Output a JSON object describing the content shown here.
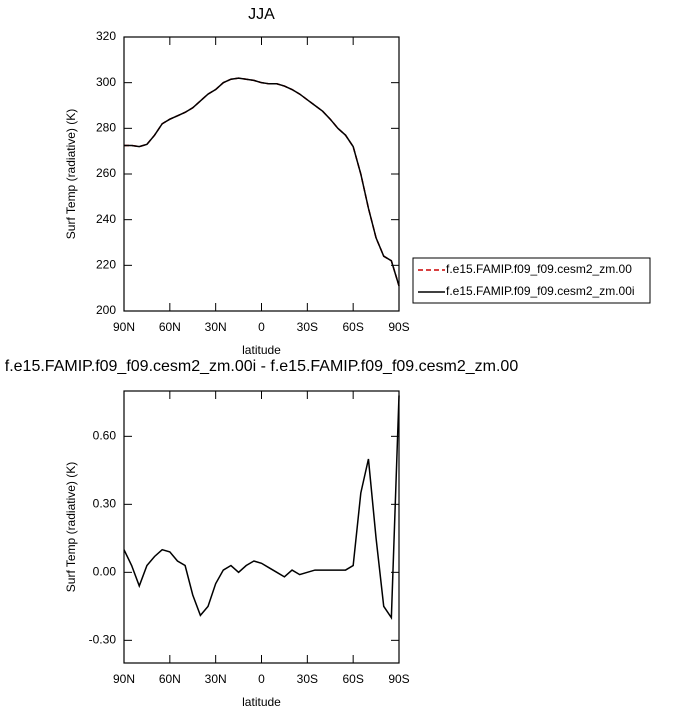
{
  "chart_data": [
    {
      "type": "line",
      "title": "JJA",
      "x_label": "latitude",
      "y_label": "Surf Temp (radiative) (K)",
      "x": [
        90,
        85,
        80,
        75,
        70,
        65,
        60,
        55,
        50,
        45,
        40,
        35,
        30,
        25,
        20,
        15,
        10,
        5,
        0,
        -5,
        -10,
        -15,
        -20,
        -25,
        -30,
        -35,
        -40,
        -45,
        -50,
        -55,
        -60,
        -65,
        -70,
        -75,
        -80,
        -85,
        -90
      ],
      "xlim": [
        90,
        -90
      ],
      "xticks": [
        {
          "value": 90,
          "label": "90N"
        },
        {
          "value": 60,
          "label": "60N"
        },
        {
          "value": 30,
          "label": "30N"
        },
        0,
        {
          "value": -30,
          "label": "30S"
        },
        {
          "value": -60,
          "label": "60S"
        },
        {
          "value": -90,
          "label": "90S"
        }
      ],
      "ylim": [
        200,
        320
      ],
      "yticks": [
        200,
        220,
        240,
        260,
        280,
        300,
        320
      ],
      "legend": "right",
      "series": [
        {
          "name": "f.e15.FAMIP.f09_f09.cesm2_zm.00",
          "color": "#cc0000",
          "dash": true,
          "values": [
            272.5,
            272.5,
            272,
            273,
            277,
            282,
            284,
            285.5,
            287,
            289,
            292,
            295,
            297,
            300,
            301.5,
            302,
            301.5,
            301,
            300,
            299.5,
            299.5,
            298.5,
            297,
            295,
            292.5,
            290,
            287.5,
            284,
            280,
            277,
            272,
            260,
            245,
            232,
            224,
            222,
            211
          ]
        },
        {
          "name": "f.e15.FAMIP.f09_f09.cesm2_zm.00i",
          "color": "#000000",
          "dash": false,
          "values": [
            272.5,
            272.5,
            272,
            273,
            277,
            282,
            284,
            285.5,
            287,
            289,
            292,
            295,
            297,
            300,
            301.5,
            302,
            301.5,
            301,
            300,
            299.5,
            299.5,
            298.5,
            297,
            295,
            292.5,
            290,
            287.5,
            284,
            280,
            277,
            272,
            260,
            245,
            232,
            224,
            222,
            211
          ]
        }
      ]
    },
    {
      "type": "line",
      "title": "f.e15.FAMIP.f09_f09.cesm2_zm.00i - f.e15.FAMIP.f09_f09.cesm2_zm.00",
      "x_label": "latitude",
      "y_label": "Surf Temp (radiative) (K)",
      "x": [
        90,
        85,
        80,
        75,
        70,
        65,
        60,
        55,
        50,
        45,
        40,
        35,
        30,
        25,
        20,
        15,
        10,
        5,
        0,
        -5,
        -10,
        -15,
        -20,
        -25,
        -30,
        -35,
        -40,
        -45,
        -50,
        -55,
        -60,
        -65,
        -70,
        -75,
        -80,
        -85,
        -90
      ],
      "xlim": [
        90,
        -90
      ],
      "xticks": [
        {
          "value": 90,
          "label": "90N"
        },
        {
          "value": 60,
          "label": "60N"
        },
        {
          "value": 30,
          "label": "30N"
        },
        0,
        {
          "value": -30,
          "label": "30S"
        },
        {
          "value": -60,
          "label": "60S"
        },
        {
          "value": -90,
          "label": "90S"
        }
      ],
      "ylim": [
        -0.4,
        0.8
      ],
      "yticks": [
        {
          "value": -0.3,
          "label": "-0.30"
        },
        {
          "value": 0,
          "label": "0.00"
        },
        {
          "value": 0.3,
          "label": "0.30"
        },
        {
          "value": 0.6,
          "label": "0.60"
        }
      ],
      "series": [
        {
          "color": "#000000",
          "dash": false,
          "values": [
            0.1,
            0.03,
            -0.06,
            0.03,
            0.07,
            0.1,
            0.09,
            0.05,
            0.03,
            -0.1,
            -0.19,
            -0.15,
            -0.05,
            0.01,
            0.03,
            0.0,
            0.03,
            0.05,
            0.04,
            0.02,
            0.0,
            -0.02,
            0.01,
            -0.01,
            0.0,
            0.01,
            0.01,
            0.01,
            0.01,
            0.01,
            0.03,
            0.35,
            0.5,
            0.15,
            -0.15,
            -0.2,
            0.78
          ]
        }
      ]
    }
  ]
}
